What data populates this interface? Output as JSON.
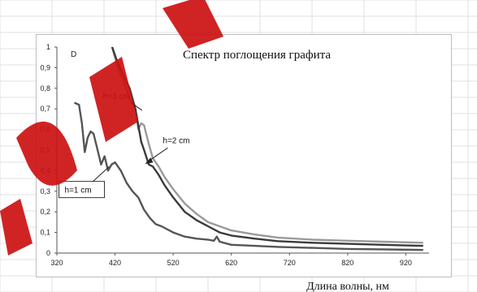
{
  "chart_data": {
    "type": "line",
    "title": "Спектр поглощения графита",
    "ylabel": "D",
    "xlabel": "Длина волны, нм",
    "xlim": [
      320,
      960
    ],
    "ylim": [
      0,
      1
    ],
    "xticks": [
      320,
      420,
      520,
      620,
      720,
      820,
      920
    ],
    "yticks": [
      "0",
      "0,1",
      "0,2",
      "0,3",
      "0,4",
      "0,5",
      "0,6",
      "0,7",
      "0,8",
      "0,9",
      "1"
    ],
    "grid": "off",
    "series": [
      {
        "name": "h=1 cm",
        "color": "#555555",
        "x": [
          350,
          358,
          363,
          368,
          373,
          378,
          383,
          390,
          396,
          402,
          408,
          414,
          420,
          430,
          440,
          450,
          460,
          470,
          480,
          490,
          500,
          520,
          540,
          560,
          580,
          590,
          595,
          600,
          620,
          660,
          700,
          760,
          820,
          880,
          950
        ],
        "y": [
          0.73,
          0.72,
          0.63,
          0.49,
          0.56,
          0.59,
          0.58,
          0.5,
          0.43,
          0.47,
          0.4,
          0.43,
          0.44,
          0.4,
          0.34,
          0.3,
          0.27,
          0.21,
          0.17,
          0.14,
          0.13,
          0.1,
          0.08,
          0.07,
          0.065,
          0.06,
          0.08,
          0.055,
          0.04,
          0.035,
          0.03,
          0.025,
          0.02,
          0.018,
          0.015
        ]
      },
      {
        "name": "h=2 cm",
        "color": "#9a9a9a",
        "x": [
          415,
          425,
          435,
          445,
          455,
          460,
          465,
          470,
          478,
          485,
          495,
          505,
          520,
          540,
          560,
          580,
          600,
          620,
          660,
          700,
          760,
          820,
          880,
          950
        ],
        "y": [
          1.0,
          0.9,
          0.83,
          0.75,
          0.7,
          0.6,
          0.63,
          0.62,
          0.53,
          0.46,
          0.42,
          0.37,
          0.31,
          0.24,
          0.19,
          0.15,
          0.13,
          0.11,
          0.09,
          0.075,
          0.065,
          0.06,
          0.055,
          0.05
        ]
      },
      {
        "name": "h=3 cm",
        "color": "#3a3a3a",
        "x": [
          415,
          425,
          435,
          445,
          450,
          455,
          460,
          465,
          470,
          478,
          485,
          495,
          505,
          520,
          540,
          560,
          580,
          600,
          620,
          660,
          700,
          760,
          820,
          880,
          950
        ],
        "y": [
          1.0,
          0.92,
          0.86,
          0.8,
          0.75,
          0.7,
          0.62,
          0.54,
          0.5,
          0.43,
          0.42,
          0.38,
          0.33,
          0.27,
          0.2,
          0.16,
          0.13,
          0.1,
          0.085,
          0.07,
          0.058,
          0.05,
          0.045,
          0.04,
          0.035
        ]
      }
    ],
    "annotations": [
      {
        "text": "h=3 cm",
        "x": 458,
        "y": 0.74
      },
      {
        "text": "h=2 cm",
        "x": 505,
        "y": 0.55
      },
      {
        "text": "h=1 cm",
        "x": 385,
        "y": 0.34
      }
    ]
  }
}
